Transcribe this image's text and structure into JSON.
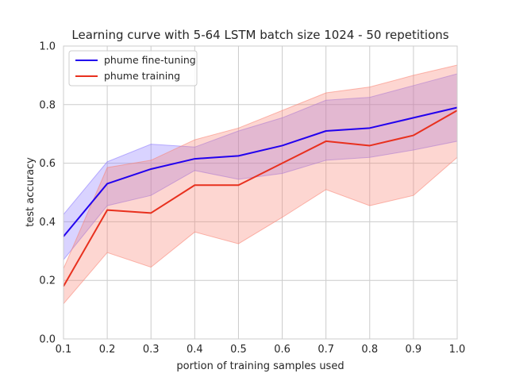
{
  "chart_data": {
    "type": "line",
    "title": "Learning curve with 5-64 LSTM batch size 1024 - 50 repetitions",
    "xlabel": "portion of training samples used",
    "ylabel": "test accuracy",
    "xlim": [
      0.1,
      1.0
    ],
    "ylim": [
      0.0,
      1.0
    ],
    "xticks": [
      "0.1",
      "0.2",
      "0.3",
      "0.4",
      "0.5",
      "0.6",
      "0.7",
      "0.8",
      "0.9",
      "1.0"
    ],
    "yticks": [
      "0.0",
      "0.2",
      "0.4",
      "0.6",
      "0.8",
      "1.0"
    ],
    "grid": true,
    "legend_position": "top-left",
    "x": [
      0.1,
      0.2,
      0.3,
      0.4,
      0.5,
      0.6,
      0.7,
      0.8,
      0.9,
      1.0
    ],
    "series": [
      {
        "name": "phume fine-tuning",
        "color": "#2200ee",
        "band_color": "#8877ff",
        "values": [
          0.35,
          0.53,
          0.58,
          0.615,
          0.625,
          0.66,
          0.71,
          0.72,
          0.755,
          0.79
        ],
        "upper": [
          0.425,
          0.605,
          0.665,
          0.655,
          0.71,
          0.755,
          0.815,
          0.825,
          0.865,
          0.905
        ],
        "lower": [
          0.27,
          0.455,
          0.49,
          0.575,
          0.545,
          0.565,
          0.61,
          0.62,
          0.645,
          0.675
        ]
      },
      {
        "name": "phume training",
        "color": "#e8301e",
        "band_color": "#fa8070",
        "values": [
          0.18,
          0.44,
          0.43,
          0.525,
          0.525,
          0.6,
          0.675,
          0.66,
          0.695,
          0.78
        ],
        "upper": [
          0.24,
          0.585,
          0.61,
          0.68,
          0.72,
          0.78,
          0.84,
          0.86,
          0.9,
          0.935
        ],
        "lower": [
          0.12,
          0.295,
          0.245,
          0.365,
          0.325,
          0.415,
          0.51,
          0.455,
          0.49,
          0.62
        ]
      }
    ]
  }
}
